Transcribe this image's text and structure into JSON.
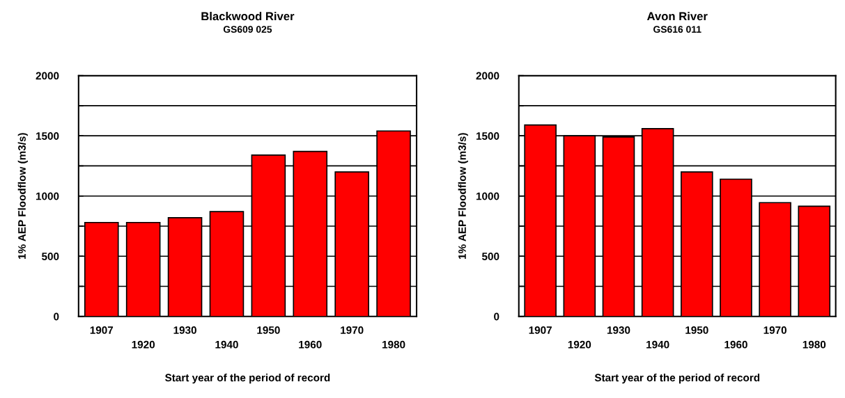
{
  "chart_data": [
    {
      "type": "bar",
      "title": "Blackwood River",
      "subtitle": "GS609 025",
      "xlabel": "Start year of the period of record",
      "ylabel": "1% AEP Floodflow (m3/s)",
      "categories": [
        "1907",
        "1920",
        "1930",
        "1940",
        "1950",
        "1960",
        "1970",
        "1980"
      ],
      "values": [
        780,
        780,
        820,
        870,
        1340,
        1370,
        1200,
        1540
      ],
      "color": "#ff0000",
      "ylim": [
        0,
        2000
      ],
      "yticks": [
        0,
        {
          "value": 250,
          "label": null
        },
        500,
        {
          "value": 750,
          "label": null
        },
        1000,
        {
          "value": 1250,
          "label": null
        },
        1500,
        {
          "value": 1750,
          "label": null
        },
        2000
      ],
      "grid": "y"
    },
    {
      "type": "bar",
      "title": "Avon River",
      "subtitle": "GS616 011",
      "xlabel": "Start year of the period of record",
      "ylabel": "1% AEP Floodflow (m3/s)",
      "categories": [
        "1907",
        "1920",
        "1930",
        "1940",
        "1950",
        "1960",
        "1970",
        "1980"
      ],
      "values": [
        1590,
        1500,
        1490,
        1560,
        1200,
        1140,
        945,
        915
      ],
      "color": "#ff0000",
      "ylim": [
        0,
        2000
      ],
      "yticks": [
        0,
        {
          "value": 250,
          "label": null
        },
        500,
        {
          "value": 750,
          "label": null
        },
        1000,
        {
          "value": 1250,
          "label": null
        },
        1500,
        {
          "value": 1750,
          "label": null
        },
        2000
      ],
      "grid": "y"
    }
  ]
}
